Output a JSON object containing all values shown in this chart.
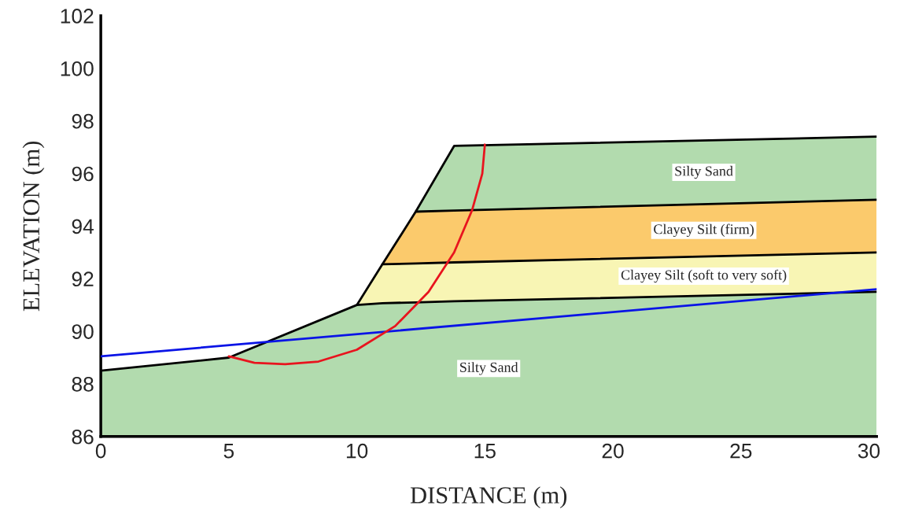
{
  "chart_data": {
    "type": "area",
    "xlabel": "DISTANCE (m)",
    "ylabel": "ELEVATION (m)",
    "x": [
      0,
      5,
      10,
      11.0,
      12.3,
      13.8,
      30.3
    ],
    "xlim": [
      0,
      30.3
    ],
    "xticks": [
      0,
      5,
      10,
      15,
      20,
      25,
      30
    ],
    "ylim": [
      86,
      102
    ],
    "yticks": [
      86,
      88,
      90,
      92,
      94,
      96,
      98,
      100,
      102
    ],
    "grid": false,
    "legend": false,
    "series": [
      {
        "name": "Silty Sand",
        "color": "#b2dbae",
        "values": [
          88.5,
          89.0,
          91.0,
          91.07,
          91.1,
          91.14,
          91.5
        ]
      },
      {
        "name": "Clayey Silt (soft to very soft)",
        "color": "#f8f5b4",
        "values": [
          null,
          null,
          91.0,
          92.55,
          92.58,
          92.62,
          93.0
        ]
      },
      {
        "name": "Clayey Silt (firm)",
        "color": "#fbca6c",
        "values": [
          null,
          null,
          null,
          92.55,
          94.55,
          94.59,
          95.0
        ]
      },
      {
        "name": "Silty Sand",
        "color": "#b2dbae",
        "values": [
          null,
          null,
          null,
          null,
          94.55,
          97.05,
          97.4
        ]
      },
      {
        "type": "line",
        "color": "#0a14e6",
        "x": [
          0,
          30.3
        ],
        "values": [
          89.05,
          91.6
        ]
      },
      {
        "type": "line",
        "color": "#e8141e",
        "x": [
          5.0,
          6.0,
          7.2,
          8.5,
          10,
          11.5,
          12.8,
          13.8,
          14.5,
          14.9,
          15.0
        ],
        "values": [
          89.05,
          88.8,
          88.75,
          88.85,
          89.3,
          90.2,
          91.5,
          93,
          94.6,
          96,
          97.1
        ]
      }
    ]
  }
}
